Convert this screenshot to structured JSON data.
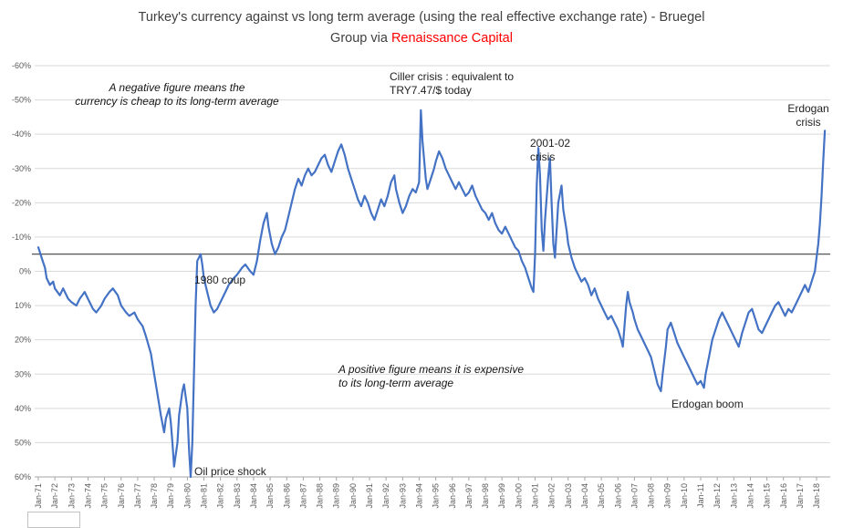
{
  "title": {
    "line1": "Turkey's currency against vs long term average (using the real effective exchange rate) - Bruegel",
    "line2_prefix": "Group via ",
    "line2_highlight": "Renaissance Capital"
  },
  "colors": {
    "line": "#4472C4",
    "grid": "#D9D9D9",
    "axis": "#A6A6A6",
    "axis_text": "#595959",
    "average_line": "#404040",
    "title_text": "#404040",
    "highlight": "#FF0000"
  },
  "chart_data": {
    "type": "line",
    "title": "Turkey's currency against vs long term average (using the real effective exchange rate) - Bruegel Group via Renaissance Capital",
    "y_axis": {
      "unit": "%",
      "min": -60,
      "max": 60,
      "step": 10,
      "inverted_note": "negative values plotted at top: negative = currency cheap vs long-term average, positive = expensive",
      "ticks": [
        "-60%",
        "-50%",
        "-40%",
        "-30%",
        "-20%",
        "-10%",
        "0%",
        "10%",
        "20%",
        "30%",
        "40%",
        "50%",
        "60%"
      ]
    },
    "x_axis": {
      "start_year": 1971,
      "end_year": 2018,
      "ticks": [
        "Jan-71",
        "Jan-72",
        "Jan-73",
        "Jan-74",
        "Jan-75",
        "Jan-76",
        "Jan-77",
        "Jan-78",
        "Jan-79",
        "Jan-80",
        "Jan-81",
        "Jan-82",
        "Jan-83",
        "Jan-84",
        "Jan-85",
        "Jan-86",
        "Jan-87",
        "Jan-88",
        "Jan-89",
        "Jan-90",
        "Jan-91",
        "Jan-92",
        "Jan-93",
        "Jan-94",
        "Jan-95",
        "Jan-96",
        "Jan-97",
        "Jan-98",
        "Jan-99",
        "Jan-00",
        "Jan-01",
        "Jan-02",
        "Jan-03",
        "Jan-04",
        "Jan-05",
        "Jan-06",
        "Jan-07",
        "Jan-08",
        "Jan-09",
        "Jan-10",
        "Jan-11",
        "Jan-12",
        "Jan-13",
        "Jan-14",
        "Jan-15",
        "Jan-16",
        "Jan-17",
        "Jan-18"
      ]
    },
    "average_line_value": -5,
    "series": [
      {
        "name": "Turkey REER deviation vs long-term average (%)",
        "points": [
          [
            1971,
            -7
          ],
          [
            1971.2,
            -4
          ],
          [
            1971.4,
            -1
          ],
          [
            1971.5,
            2
          ],
          [
            1971.7,
            4
          ],
          [
            1971.9,
            3
          ],
          [
            1972,
            5
          ],
          [
            1972.3,
            7
          ],
          [
            1972.5,
            5
          ],
          [
            1972.8,
            8
          ],
          [
            1973,
            9
          ],
          [
            1973.3,
            10
          ],
          [
            1973.5,
            8
          ],
          [
            1973.8,
            6
          ],
          [
            1974,
            8
          ],
          [
            1974.3,
            11
          ],
          [
            1974.5,
            12
          ],
          [
            1974.8,
            10
          ],
          [
            1975,
            8
          ],
          [
            1975.3,
            6
          ],
          [
            1975.5,
            5
          ],
          [
            1975.8,
            7
          ],
          [
            1976,
            10
          ],
          [
            1976.3,
            12
          ],
          [
            1976.5,
            13
          ],
          [
            1976.8,
            12
          ],
          [
            1977,
            14
          ],
          [
            1977.3,
            16
          ],
          [
            1977.5,
            19
          ],
          [
            1977.8,
            24
          ],
          [
            1978,
            30
          ],
          [
            1978.2,
            36
          ],
          [
            1978.4,
            42
          ],
          [
            1978.6,
            47
          ],
          [
            1978.7,
            43
          ],
          [
            1978.9,
            40
          ],
          [
            1979,
            44
          ],
          [
            1979.1,
            50
          ],
          [
            1979.2,
            57
          ],
          [
            1979.4,
            50
          ],
          [
            1979.5,
            42
          ],
          [
            1979.7,
            35
          ],
          [
            1979.8,
            33
          ],
          [
            1980,
            40
          ],
          [
            1980.1,
            52
          ],
          [
            1980.2,
            60
          ],
          [
            1980.3,
            50
          ],
          [
            1980.4,
            30
          ],
          [
            1980.5,
            10
          ],
          [
            1980.6,
            -3
          ],
          [
            1980.8,
            -5
          ],
          [
            1980.9,
            -2
          ],
          [
            1981,
            2
          ],
          [
            1981.2,
            6
          ],
          [
            1981.4,
            10
          ],
          [
            1981.6,
            12
          ],
          [
            1981.8,
            11
          ],
          [
            1982,
            9
          ],
          [
            1982.3,
            6
          ],
          [
            1982.5,
            4
          ],
          [
            1982.8,
            2
          ],
          [
            1983,
            1
          ],
          [
            1983.3,
            -1
          ],
          [
            1983.5,
            -2
          ],
          [
            1983.8,
            0
          ],
          [
            1984,
            1
          ],
          [
            1984.2,
            -3
          ],
          [
            1984.4,
            -9
          ],
          [
            1984.6,
            -14
          ],
          [
            1984.8,
            -17
          ],
          [
            1984.9,
            -13
          ],
          [
            1985.1,
            -8
          ],
          [
            1985.3,
            -5
          ],
          [
            1985.5,
            -7
          ],
          [
            1985.7,
            -10
          ],
          [
            1985.9,
            -12
          ],
          [
            1986.1,
            -16
          ],
          [
            1986.3,
            -20
          ],
          [
            1986.5,
            -24
          ],
          [
            1986.7,
            -27
          ],
          [
            1986.9,
            -25
          ],
          [
            1987.1,
            -28
          ],
          [
            1987.3,
            -30
          ],
          [
            1987.5,
            -28
          ],
          [
            1987.7,
            -29
          ],
          [
            1987.9,
            -31
          ],
          [
            1988.1,
            -33
          ],
          [
            1988.3,
            -34
          ],
          [
            1988.5,
            -31
          ],
          [
            1988.7,
            -29
          ],
          [
            1988.9,
            -32
          ],
          [
            1989.1,
            -35
          ],
          [
            1989.3,
            -37
          ],
          [
            1989.5,
            -34
          ],
          [
            1989.7,
            -30
          ],
          [
            1989.9,
            -27
          ],
          [
            1990.1,
            -24
          ],
          [
            1990.3,
            -21
          ],
          [
            1990.5,
            -19
          ],
          [
            1990.7,
            -22
          ],
          [
            1990.9,
            -20
          ],
          [
            1991.1,
            -17
          ],
          [
            1991.3,
            -15
          ],
          [
            1991.5,
            -18
          ],
          [
            1991.7,
            -21
          ],
          [
            1991.9,
            -19
          ],
          [
            1992.1,
            -22
          ],
          [
            1992.3,
            -26
          ],
          [
            1992.5,
            -28
          ],
          [
            1992.6,
            -24
          ],
          [
            1992.8,
            -20
          ],
          [
            1993,
            -17
          ],
          [
            1993.2,
            -19
          ],
          [
            1993.4,
            -22
          ],
          [
            1993.6,
            -24
          ],
          [
            1993.8,
            -23
          ],
          [
            1994,
            -26
          ],
          [
            1994.1,
            -47
          ],
          [
            1994.2,
            -38
          ],
          [
            1994.4,
            -27
          ],
          [
            1994.5,
            -24
          ],
          [
            1994.7,
            -27
          ],
          [
            1994.9,
            -30
          ],
          [
            1995,
            -32
          ],
          [
            1995.2,
            -35
          ],
          [
            1995.4,
            -33
          ],
          [
            1995.6,
            -30
          ],
          [
            1995.8,
            -28
          ],
          [
            1996,
            -26
          ],
          [
            1996.2,
            -24
          ],
          [
            1996.4,
            -26
          ],
          [
            1996.6,
            -24
          ],
          [
            1996.8,
            -22
          ],
          [
            1997,
            -23
          ],
          [
            1997.2,
            -25
          ],
          [
            1997.4,
            -22
          ],
          [
            1997.6,
            -20
          ],
          [
            1997.8,
            -18
          ],
          [
            1998,
            -17
          ],
          [
            1998.2,
            -15
          ],
          [
            1998.4,
            -17
          ],
          [
            1998.6,
            -14
          ],
          [
            1998.8,
            -12
          ],
          [
            1999,
            -11
          ],
          [
            1999.2,
            -13
          ],
          [
            1999.4,
            -11
          ],
          [
            1999.6,
            -9
          ],
          [
            1999.8,
            -7
          ],
          [
            2000,
            -6
          ],
          [
            2000.2,
            -3
          ],
          [
            2000.4,
            -1
          ],
          [
            2000.6,
            2
          ],
          [
            2000.8,
            5
          ],
          [
            2000.9,
            6
          ],
          [
            2001,
            -5
          ],
          [
            2001.1,
            -25
          ],
          [
            2001.2,
            -36
          ],
          [
            2001.3,
            -28
          ],
          [
            2001.4,
            -12
          ],
          [
            2001.5,
            -6
          ],
          [
            2001.6,
            -15
          ],
          [
            2001.8,
            -28
          ],
          [
            2001.9,
            -33
          ],
          [
            2002,
            -20
          ],
          [
            2002.1,
            -8
          ],
          [
            2002.2,
            -4
          ],
          [
            2002.3,
            -12
          ],
          [
            2002.4,
            -20
          ],
          [
            2002.6,
            -25
          ],
          [
            2002.7,
            -18
          ],
          [
            2002.9,
            -12
          ],
          [
            2003,
            -8
          ],
          [
            2003.2,
            -4
          ],
          [
            2003.4,
            -1
          ],
          [
            2003.6,
            1
          ],
          [
            2003.8,
            3
          ],
          [
            2004,
            2
          ],
          [
            2004.2,
            4
          ],
          [
            2004.4,
            7
          ],
          [
            2004.6,
            5
          ],
          [
            2004.8,
            8
          ],
          [
            2005,
            10
          ],
          [
            2005.2,
            12
          ],
          [
            2005.4,
            14
          ],
          [
            2005.6,
            13
          ],
          [
            2005.8,
            15
          ],
          [
            2006,
            17
          ],
          [
            2006.2,
            20
          ],
          [
            2006.3,
            22
          ],
          [
            2006.5,
            10
          ],
          [
            2006.6,
            6
          ],
          [
            2006.7,
            9
          ],
          [
            2006.9,
            12
          ],
          [
            2007,
            14
          ],
          [
            2007.2,
            17
          ],
          [
            2007.4,
            19
          ],
          [
            2007.6,
            21
          ],
          [
            2007.8,
            23
          ],
          [
            2008,
            25
          ],
          [
            2008.2,
            29
          ],
          [
            2008.4,
            33
          ],
          [
            2008.6,
            35
          ],
          [
            2008.7,
            30
          ],
          [
            2008.9,
            22
          ],
          [
            2009,
            17
          ],
          [
            2009.2,
            15
          ],
          [
            2009.4,
            18
          ],
          [
            2009.6,
            21
          ],
          [
            2009.8,
            23
          ],
          [
            2010,
            25
          ],
          [
            2010.2,
            27
          ],
          [
            2010.4,
            29
          ],
          [
            2010.6,
            31
          ],
          [
            2010.8,
            33
          ],
          [
            2011,
            32
          ],
          [
            2011.2,
            34
          ],
          [
            2011.3,
            30
          ],
          [
            2011.5,
            25
          ],
          [
            2011.7,
            20
          ],
          [
            2011.9,
            17
          ],
          [
            2012.1,
            14
          ],
          [
            2012.3,
            12
          ],
          [
            2012.5,
            14
          ],
          [
            2012.7,
            16
          ],
          [
            2012.9,
            18
          ],
          [
            2013.1,
            20
          ],
          [
            2013.3,
            22
          ],
          [
            2013.5,
            18
          ],
          [
            2013.7,
            15
          ],
          [
            2013.9,
            12
          ],
          [
            2014.1,
            11
          ],
          [
            2014.3,
            14
          ],
          [
            2014.5,
            17
          ],
          [
            2014.7,
            18
          ],
          [
            2014.9,
            16
          ],
          [
            2015.1,
            14
          ],
          [
            2015.3,
            12
          ],
          [
            2015.5,
            10
          ],
          [
            2015.7,
            9
          ],
          [
            2015.9,
            11
          ],
          [
            2016.1,
            13
          ],
          [
            2016.3,
            11
          ],
          [
            2016.5,
            12
          ],
          [
            2016.7,
            10
          ],
          [
            2016.9,
            8
          ],
          [
            2017.1,
            6
          ],
          [
            2017.3,
            4
          ],
          [
            2017.5,
            6
          ],
          [
            2017.7,
            3
          ],
          [
            2017.9,
            0
          ],
          [
            2018,
            -4
          ],
          [
            2018.1,
            -8
          ],
          [
            2018.2,
            -14
          ],
          [
            2018.3,
            -22
          ],
          [
            2018.4,
            -32
          ],
          [
            2018.5,
            -41
          ]
        ]
      }
    ],
    "annotations": [
      {
        "id": "negative-note",
        "text": "A negative figure means the\ncurrency is cheap to its long-term average",
        "style": "italic"
      },
      {
        "id": "ciller-crisis",
        "text": "Ciller crisis : equivalent to\nTRY7.47/$ today",
        "style": "regular"
      },
      {
        "id": "2001-02-crisis",
        "text": "2001-02\ncrisis",
        "style": "regular"
      },
      {
        "id": "erdogan-crisis",
        "text": "Erdogan\ncrisis",
        "style": "regular"
      },
      {
        "id": "1980-coup",
        "text": "1980 coup",
        "style": "regular"
      },
      {
        "id": "oil-price-shock",
        "text": "Oil price shock",
        "style": "regular"
      },
      {
        "id": "erdogan-boom",
        "text": "Erdogan boom",
        "style": "regular"
      },
      {
        "id": "positive-note",
        "text": "A positive figure means it is expensive\nto its long-term average",
        "style": "italic"
      }
    ],
    "layout_hints": {
      "grid": "horizontal light-gray lines every 10%",
      "legend": "none",
      "x_labels_rotated": true,
      "dark_horizontal_reference_line": "long-term average marker near -5%"
    }
  }
}
